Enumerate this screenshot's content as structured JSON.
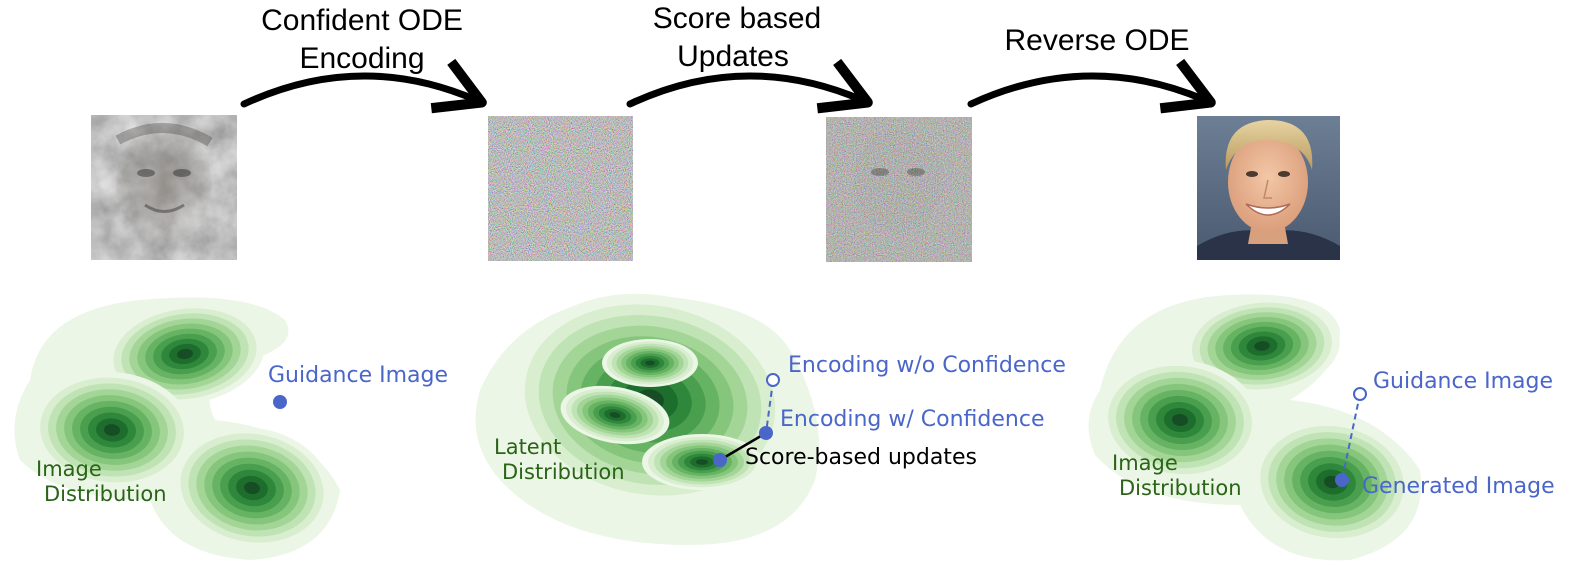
{
  "steps": [
    {
      "line1": "Confident ODE",
      "line2": "Encoding"
    },
    {
      "line1": "Score based",
      "line2": "Updates"
    },
    {
      "line1": "Reverse ODE",
      "line2": ""
    }
  ],
  "panels": {
    "left": {
      "distribution_line1": "Image",
      "distribution_line2": "Distribution",
      "point_label": "Guidance Image"
    },
    "middle": {
      "distribution_line1": "Latent",
      "distribution_line2": "Distribution",
      "open_point_label": "Encoding w/o Confidence",
      "encoding_label": "Encoding w/ Confidence",
      "update_label": "Score-based updates"
    },
    "right": {
      "distribution_line1": "Image",
      "distribution_line2": "Distribution",
      "guidance_label": "Guidance Image",
      "generated_label": "Generated Image"
    }
  },
  "colors": {
    "point_blue": "#4a66c9",
    "label_green": "#2a6417",
    "density_levels": [
      "#ecf6e6",
      "#d8eecf",
      "#bfe3b4",
      "#a3d597",
      "#86c67c",
      "#66b363",
      "#499f4d",
      "#2f873b",
      "#1d6d2c",
      "#174d24"
    ]
  },
  "images": {
    "guidance_photo": "noisy-smoky-face",
    "latent_noise": "rgb-gaussian-noise",
    "updated_latent": "noise-with-faint-face",
    "generated_photo": "smiling-blond-man-portrait"
  }
}
